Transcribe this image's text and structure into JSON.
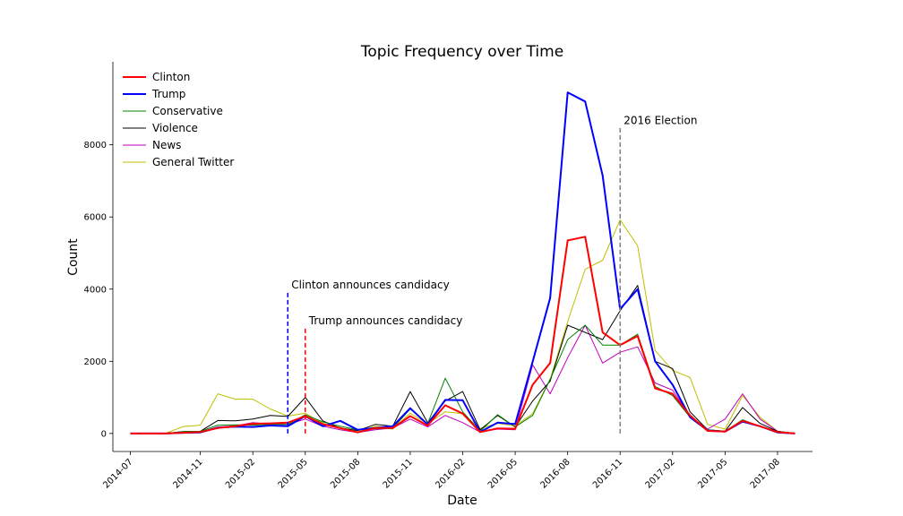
{
  "chart_data": {
    "type": "line",
    "title": "Topic Frequency over Time",
    "xlabel": "Date",
    "ylabel": "Count",
    "xlim": [
      "2014-06",
      "2017-10"
    ],
    "ylim": [
      -500,
      10300
    ],
    "x_ticks": [
      "2014-07",
      "2014-11",
      "2015-02",
      "2015-05",
      "2015-08",
      "2015-11",
      "2016-02",
      "2016-05",
      "2016-08",
      "2016-11",
      "2017-02",
      "2017-05",
      "2017-08"
    ],
    "y_ticks": [
      0,
      2000,
      4000,
      6000,
      8000
    ],
    "grid": false,
    "legend": "top-left",
    "x": [
      "2014-07",
      "2014-08",
      "2014-09",
      "2014-10",
      "2014-11",
      "2014-12",
      "2015-01",
      "2015-02",
      "2015-03",
      "2015-04",
      "2015-05",
      "2015-06",
      "2015-07",
      "2015-08",
      "2015-09",
      "2015-10",
      "2015-11",
      "2015-12",
      "2016-01",
      "2016-02",
      "2016-03",
      "2016-04",
      "2016-05",
      "2016-06",
      "2016-07",
      "2016-08",
      "2016-09",
      "2016-10",
      "2016-11",
      "2016-12",
      "2017-01",
      "2017-02",
      "2017-03",
      "2017-04",
      "2017-05",
      "2017-06",
      "2017-07",
      "2017-08",
      "2017-09"
    ],
    "series": [
      {
        "name": "Clinton",
        "color": "#ff0000",
        "width": 2,
        "values": [
          0,
          0,
          0,
          20,
          40,
          150,
          200,
          270,
          280,
          300,
          480,
          260,
          150,
          30,
          150,
          150,
          480,
          220,
          780,
          550,
          40,
          140,
          130,
          1350,
          1950,
          5350,
          5450,
          2800,
          2450,
          2700,
          1250,
          1100,
          500,
          70,
          50,
          350,
          200,
          40,
          0
        ]
      },
      {
        "name": "Trump",
        "color": "#0000ff",
        "width": 2,
        "values": [
          0,
          0,
          0,
          20,
          30,
          160,
          190,
          180,
          220,
          200,
          480,
          200,
          350,
          100,
          150,
          200,
          700,
          250,
          930,
          920,
          40,
          300,
          260,
          1990,
          3750,
          9450,
          9200,
          7150,
          3450,
          4000,
          2000,
          1350,
          450,
          80,
          50,
          330,
          200,
          30,
          0
        ]
      },
      {
        "name": "Conservative",
        "color": "#008000",
        "width": 1,
        "values": [
          0,
          0,
          0,
          50,
          60,
          230,
          240,
          230,
          250,
          250,
          520,
          320,
          200,
          100,
          130,
          140,
          680,
          270,
          1530,
          600,
          60,
          520,
          180,
          500,
          1500,
          2600,
          3000,
          2450,
          2450,
          2750,
          1300,
          1050,
          450,
          100,
          60,
          380,
          200,
          50,
          0
        ]
      },
      {
        "name": "Violence",
        "color": "#000000",
        "width": 1,
        "values": [
          0,
          0,
          0,
          50,
          60,
          360,
          350,
          400,
          500,
          470,
          1000,
          350,
          150,
          80,
          250,
          200,
          1160,
          300,
          900,
          1160,
          100,
          500,
          180,
          900,
          1450,
          3000,
          2800,
          2600,
          3400,
          4100,
          2000,
          1800,
          600,
          100,
          60,
          720,
          280,
          60,
          0
        ]
      },
      {
        "name": "News",
        "color": "#bf00bf",
        "width": 1,
        "values": [
          0,
          0,
          0,
          30,
          40,
          180,
          210,
          300,
          260,
          250,
          400,
          200,
          100,
          30,
          100,
          150,
          400,
          180,
          500,
          300,
          40,
          120,
          100,
          1900,
          1100,
          2100,
          3000,
          1950,
          2250,
          2400,
          1400,
          1200,
          480,
          120,
          400,
          1100,
          400,
          60,
          0
        ]
      },
      {
        "name": "General Twitter",
        "color": "#bfbf00",
        "width": 1,
        "values": [
          0,
          0,
          0,
          190,
          230,
          1100,
          950,
          950,
          680,
          480,
          560,
          280,
          130,
          50,
          200,
          120,
          560,
          270,
          600,
          550,
          140,
          280,
          210,
          550,
          1500,
          3100,
          4550,
          4800,
          5920,
          5200,
          2300,
          1750,
          1550,
          250,
          120,
          1050,
          450,
          60,
          0
        ]
      }
    ],
    "annotations": [
      {
        "text": "Clinton announces candidacy",
        "x": "2015-04",
        "y_bottom": 0,
        "y_top": 3950,
        "color": "#0000ff"
      },
      {
        "text": "Trump announces candidacy",
        "x": "2015-05",
        "y_bottom": 0,
        "y_top": 2950,
        "color": "#ff0000"
      },
      {
        "text": "2016 Election",
        "x": "2016-11",
        "y_bottom": 0,
        "y_top": 8500,
        "color": "#808080"
      }
    ]
  }
}
